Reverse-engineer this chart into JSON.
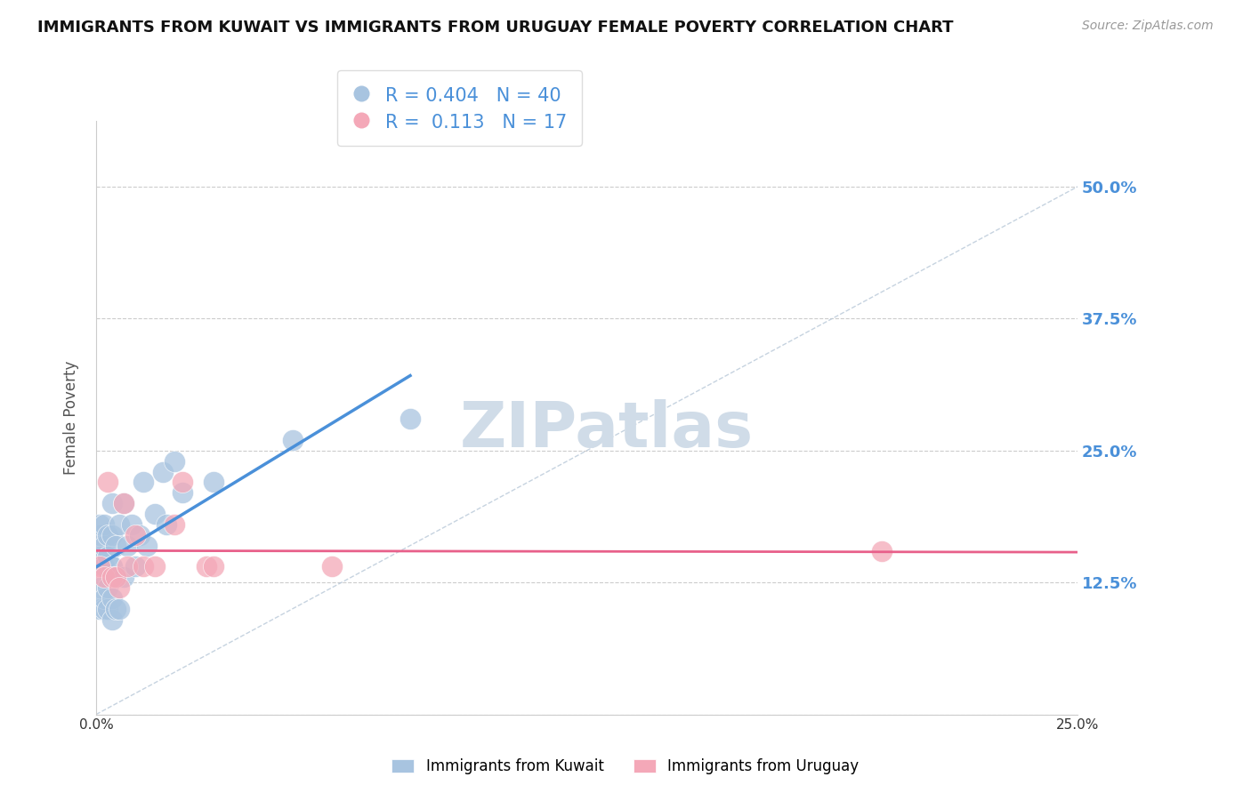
{
  "title": "IMMIGRANTS FROM KUWAIT VS IMMIGRANTS FROM URUGUAY FEMALE POVERTY CORRELATION CHART",
  "source": "Source: ZipAtlas.com",
  "ylabel": "Female Poverty",
  "xlim": [
    0.0,
    0.25
  ],
  "ylim": [
    0.0,
    0.5625
  ],
  "xticks": [
    0.0,
    0.025,
    0.05,
    0.075,
    0.1,
    0.125,
    0.15,
    0.175,
    0.2,
    0.225,
    0.25
  ],
  "xtick_labels": [
    "0.0%",
    "",
    "",
    "",
    "",
    "",
    "",
    "",
    "",
    "",
    "25.0%"
  ],
  "yticks": [
    0.0,
    0.125,
    0.25,
    0.375,
    0.5
  ],
  "ytick_labels_right": [
    "",
    "12.5%",
    "25.0%",
    "37.5%",
    "50.0%"
  ],
  "kuwait_R": 0.404,
  "kuwait_N": 40,
  "uruguay_R": 0.113,
  "uruguay_N": 17,
  "kuwait_color": "#a8c4e0",
  "uruguay_color": "#f4a8b8",
  "kuwait_line_color": "#4a90d9",
  "uruguay_line_color": "#e8608a",
  "diag_line_color": "#b8c8d8",
  "kuwait_x": [
    0.001,
    0.001,
    0.001,
    0.001,
    0.001,
    0.002,
    0.002,
    0.002,
    0.002,
    0.002,
    0.003,
    0.003,
    0.003,
    0.003,
    0.004,
    0.004,
    0.004,
    0.004,
    0.004,
    0.005,
    0.005,
    0.005,
    0.006,
    0.006,
    0.007,
    0.007,
    0.008,
    0.009,
    0.01,
    0.011,
    0.012,
    0.013,
    0.015,
    0.017,
    0.018,
    0.02,
    0.022,
    0.03,
    0.05,
    0.08
  ],
  "kuwait_y": [
    0.1,
    0.12,
    0.15,
    0.17,
    0.18,
    0.1,
    0.11,
    0.14,
    0.16,
    0.18,
    0.1,
    0.12,
    0.15,
    0.17,
    0.09,
    0.11,
    0.14,
    0.17,
    0.2,
    0.1,
    0.13,
    0.16,
    0.1,
    0.18,
    0.13,
    0.2,
    0.16,
    0.18,
    0.14,
    0.17,
    0.22,
    0.16,
    0.19,
    0.23,
    0.18,
    0.24,
    0.21,
    0.22,
    0.26,
    0.28
  ],
  "uruguay_x": [
    0.001,
    0.002,
    0.003,
    0.004,
    0.005,
    0.006,
    0.007,
    0.008,
    0.01,
    0.012,
    0.015,
    0.02,
    0.022,
    0.028,
    0.03,
    0.06,
    0.2
  ],
  "uruguay_y": [
    0.14,
    0.13,
    0.22,
    0.13,
    0.13,
    0.12,
    0.2,
    0.14,
    0.17,
    0.14,
    0.14,
    0.18,
    0.22,
    0.14,
    0.14,
    0.14,
    0.155
  ],
  "background_color": "#ffffff",
  "grid_color": "#cccccc",
  "watermark_text": "ZIPatlas",
  "watermark_color": "#d0dce8"
}
